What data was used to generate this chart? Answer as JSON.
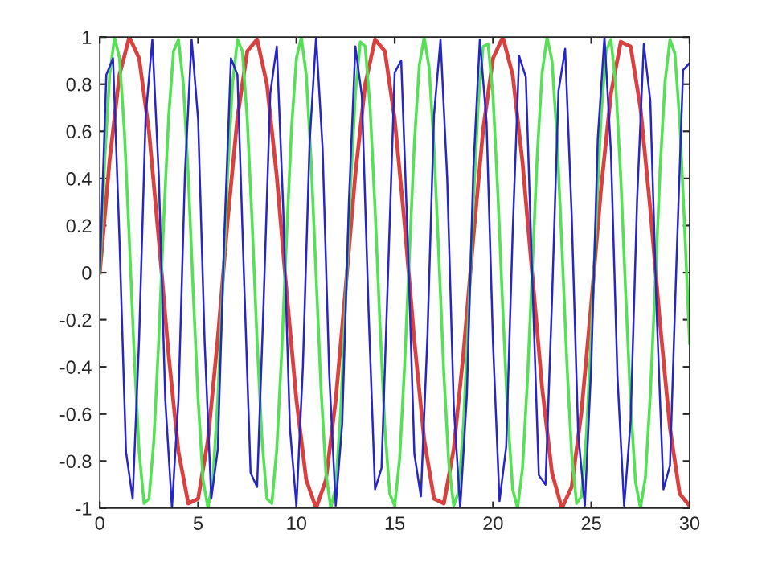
{
  "chart_data": {
    "type": "line",
    "xlim": [
      0,
      30
    ],
    "ylim": [
      -1,
      1
    ],
    "xticks": [
      0,
      5,
      10,
      15,
      20,
      25,
      30
    ],
    "yticks": [
      -1,
      -0.8,
      -0.6,
      -0.4,
      -0.2,
      0,
      0.2,
      0.4,
      0.6,
      0.8,
      1
    ],
    "line_style": "solid",
    "series": [
      {
        "color": "#d94040",
        "x": [
          0,
          0.5,
          1,
          1.5,
          2,
          2.5,
          3,
          3.5,
          4,
          4.5,
          5,
          5.5,
          6,
          6.5,
          7,
          7.5,
          8,
          8.5,
          9,
          9.5,
          10,
          10.5,
          11,
          11.5,
          12,
          12.5,
          13,
          13.5,
          14,
          14.5,
          15,
          15.5,
          16,
          16.5,
          17,
          17.5,
          18,
          18.5,
          19,
          19.5,
          20,
          20.5,
          21,
          21.5,
          22,
          22.5,
          23,
          23.5,
          24,
          24.5,
          25,
          25.5,
          26,
          26.5,
          27,
          27.5,
          28,
          28.5,
          29,
          29.5,
          30
        ],
        "values": [
          0,
          0.48,
          0.84,
          1.0,
          0.91,
          0.6,
          0.14,
          -0.35,
          -0.76,
          -0.98,
          -0.96,
          -0.71,
          -0.28,
          0.22,
          0.66,
          0.94,
          0.99,
          0.8,
          0.41,
          -0.08,
          -0.54,
          -0.88,
          -1.0,
          -0.88,
          -0.54,
          -0.07,
          0.42,
          0.8,
          0.99,
          0.94,
          0.65,
          0.21,
          -0.29,
          -0.71,
          -0.96,
          -0.98,
          -0.75,
          -0.34,
          0.15,
          0.61,
          0.91,
          1.0,
          0.84,
          0.47,
          -0.01,
          -0.49,
          -0.85,
          -1.0,
          -0.91,
          -0.59,
          -0.13,
          0.36,
          0.76,
          0.98,
          0.96,
          0.7,
          0.27,
          -0.22,
          -0.66,
          -0.94,
          -0.99
        ]
      },
      {
        "color": "#55e055",
        "x": [
          0,
          0.25,
          0.5,
          0.75,
          1,
          1.25,
          1.5,
          1.75,
          2,
          2.25,
          2.5,
          2.75,
          3,
          3.25,
          3.5,
          3.75,
          4,
          4.25,
          4.5,
          4.75,
          5,
          5.25,
          5.5,
          5.75,
          6,
          6.25,
          6.5,
          6.75,
          7,
          7.25,
          7.5,
          7.75,
          8,
          8.25,
          8.5,
          8.75,
          9,
          9.25,
          9.5,
          9.75,
          10,
          10.25,
          10.5,
          10.75,
          11,
          11.25,
          11.5,
          11.75,
          12,
          12.25,
          12.5,
          12.75,
          13,
          13.25,
          13.5,
          13.75,
          14,
          14.25,
          14.5,
          14.75,
          15,
          15.25,
          15.5,
          15.75,
          16,
          16.25,
          16.5,
          16.75,
          17,
          17.25,
          17.5,
          17.75,
          18,
          18.25,
          18.5,
          18.75,
          19,
          19.25,
          19.5,
          19.75,
          20,
          20.25,
          20.5,
          20.75,
          21,
          21.25,
          21.5,
          21.75,
          22,
          22.25,
          22.5,
          22.75,
          23,
          23.25,
          23.5,
          23.75,
          24,
          24.25,
          24.5,
          24.75,
          25,
          25.25,
          25.5,
          25.75,
          26,
          26.25,
          26.5,
          26.75,
          27,
          27.25,
          27.5,
          27.75,
          28,
          28.25,
          28.5,
          28.75,
          29,
          29.25,
          29.5,
          29.75,
          30
        ],
        "values": [
          0,
          0.48,
          0.84,
          1.0,
          0.91,
          0.6,
          0.14,
          -0.35,
          -0.76,
          -0.98,
          -0.96,
          -0.71,
          -0.28,
          0.22,
          0.66,
          0.94,
          0.99,
          0.8,
          0.41,
          -0.08,
          -0.54,
          -0.88,
          -1.0,
          -0.88,
          -0.54,
          -0.07,
          0.42,
          0.8,
          0.99,
          0.94,
          0.65,
          0.21,
          -0.29,
          -0.71,
          -0.96,
          -0.98,
          -0.75,
          -0.34,
          0.15,
          0.61,
          0.91,
          1.0,
          0.84,
          0.47,
          -0.01,
          -0.49,
          -0.85,
          -1.0,
          -0.91,
          -0.59,
          -0.13,
          0.36,
          0.76,
          0.98,
          0.96,
          0.7,
          0.27,
          -0.22,
          -0.66,
          -0.94,
          -0.99,
          -0.79,
          -0.4,
          0.08,
          0.55,
          0.88,
          1.0,
          0.87,
          0.53,
          0.06,
          -0.43,
          -0.81,
          -0.99,
          -0.93,
          -0.64,
          -0.2,
          0.3,
          0.72,
          0.96,
          0.97,
          0.75,
          0.33,
          -0.16,
          -0.61,
          -0.92,
          -1.0,
          -0.83,
          -0.46,
          0.02,
          0.5,
          0.85,
          1.0,
          0.9,
          0.58,
          0.12,
          -0.37,
          -0.77,
          -0.98,
          -0.95,
          -0.69,
          -0.26,
          0.23,
          0.67,
          0.94,
          0.99,
          0.79,
          0.4,
          -0.09,
          -0.56,
          -0.89,
          -1.0,
          -0.87,
          -0.52,
          -0.05,
          0.44,
          0.81,
          0.99,
          0.93,
          0.64,
          0.19,
          -0.3
        ]
      },
      {
        "color": "#2525c8",
        "x": [
          0,
          0.33,
          0.67,
          1,
          1.33,
          1.67,
          2,
          2.33,
          2.67,
          3,
          3.33,
          3.67,
          4,
          4.33,
          4.67,
          5,
          5.33,
          5.67,
          6,
          6.33,
          6.67,
          7,
          7.33,
          7.67,
          8,
          8.33,
          8.67,
          9,
          9.33,
          9.67,
          10,
          10.33,
          10.67,
          11,
          11.33,
          11.67,
          12,
          12.33,
          12.67,
          13,
          13.33,
          13.67,
          14,
          14.33,
          14.67,
          15,
          15.33,
          15.67,
          16,
          16.33,
          16.67,
          17,
          17.33,
          17.67,
          18,
          18.33,
          18.67,
          19,
          19.33,
          19.67,
          20,
          20.33,
          20.67,
          21,
          21.33,
          21.67,
          22,
          22.33,
          22.67,
          23,
          23.33,
          23.67,
          24,
          24.33,
          24.67,
          25,
          25.33,
          25.67,
          26,
          26.33,
          26.67,
          27,
          27.33,
          27.67,
          28,
          28.33,
          28.67,
          29,
          29.33,
          29.67,
          30
        ],
        "values": [
          0,
          0.84,
          0.91,
          0.14,
          -0.76,
          -0.96,
          -0.28,
          0.66,
          0.99,
          0.41,
          -0.54,
          -1.0,
          -0.54,
          0.42,
          0.99,
          0.65,
          -0.29,
          -0.96,
          -0.75,
          0.15,
          0.91,
          0.84,
          -0.01,
          -0.85,
          -0.91,
          -0.13,
          0.76,
          0.96,
          0.27,
          -0.66,
          -0.99,
          -0.4,
          0.55,
          1.0,
          0.53,
          -0.43,
          -0.99,
          -0.64,
          0.3,
          0.96,
          0.75,
          -0.16,
          -0.92,
          -0.83,
          0.02,
          0.85,
          0.9,
          0.12,
          -0.77,
          -0.95,
          -0.26,
          0.67,
          0.99,
          0.4,
          -0.56,
          -1.0,
          -0.52,
          0.44,
          0.99,
          0.64,
          -0.3,
          -0.97,
          -0.74,
          0.17,
          0.92,
          0.83,
          -0.03,
          -0.86,
          -0.9,
          -0.12,
          0.77,
          0.95,
          0.25,
          -0.68,
          -0.99,
          -0.39,
          0.57,
          1.0,
          0.51,
          -0.44,
          -0.99,
          -0.63,
          0.31,
          0.97,
          0.73,
          -0.18,
          -0.92,
          -0.82,
          0.04,
          0.86,
          0.89
        ]
      }
    ]
  }
}
